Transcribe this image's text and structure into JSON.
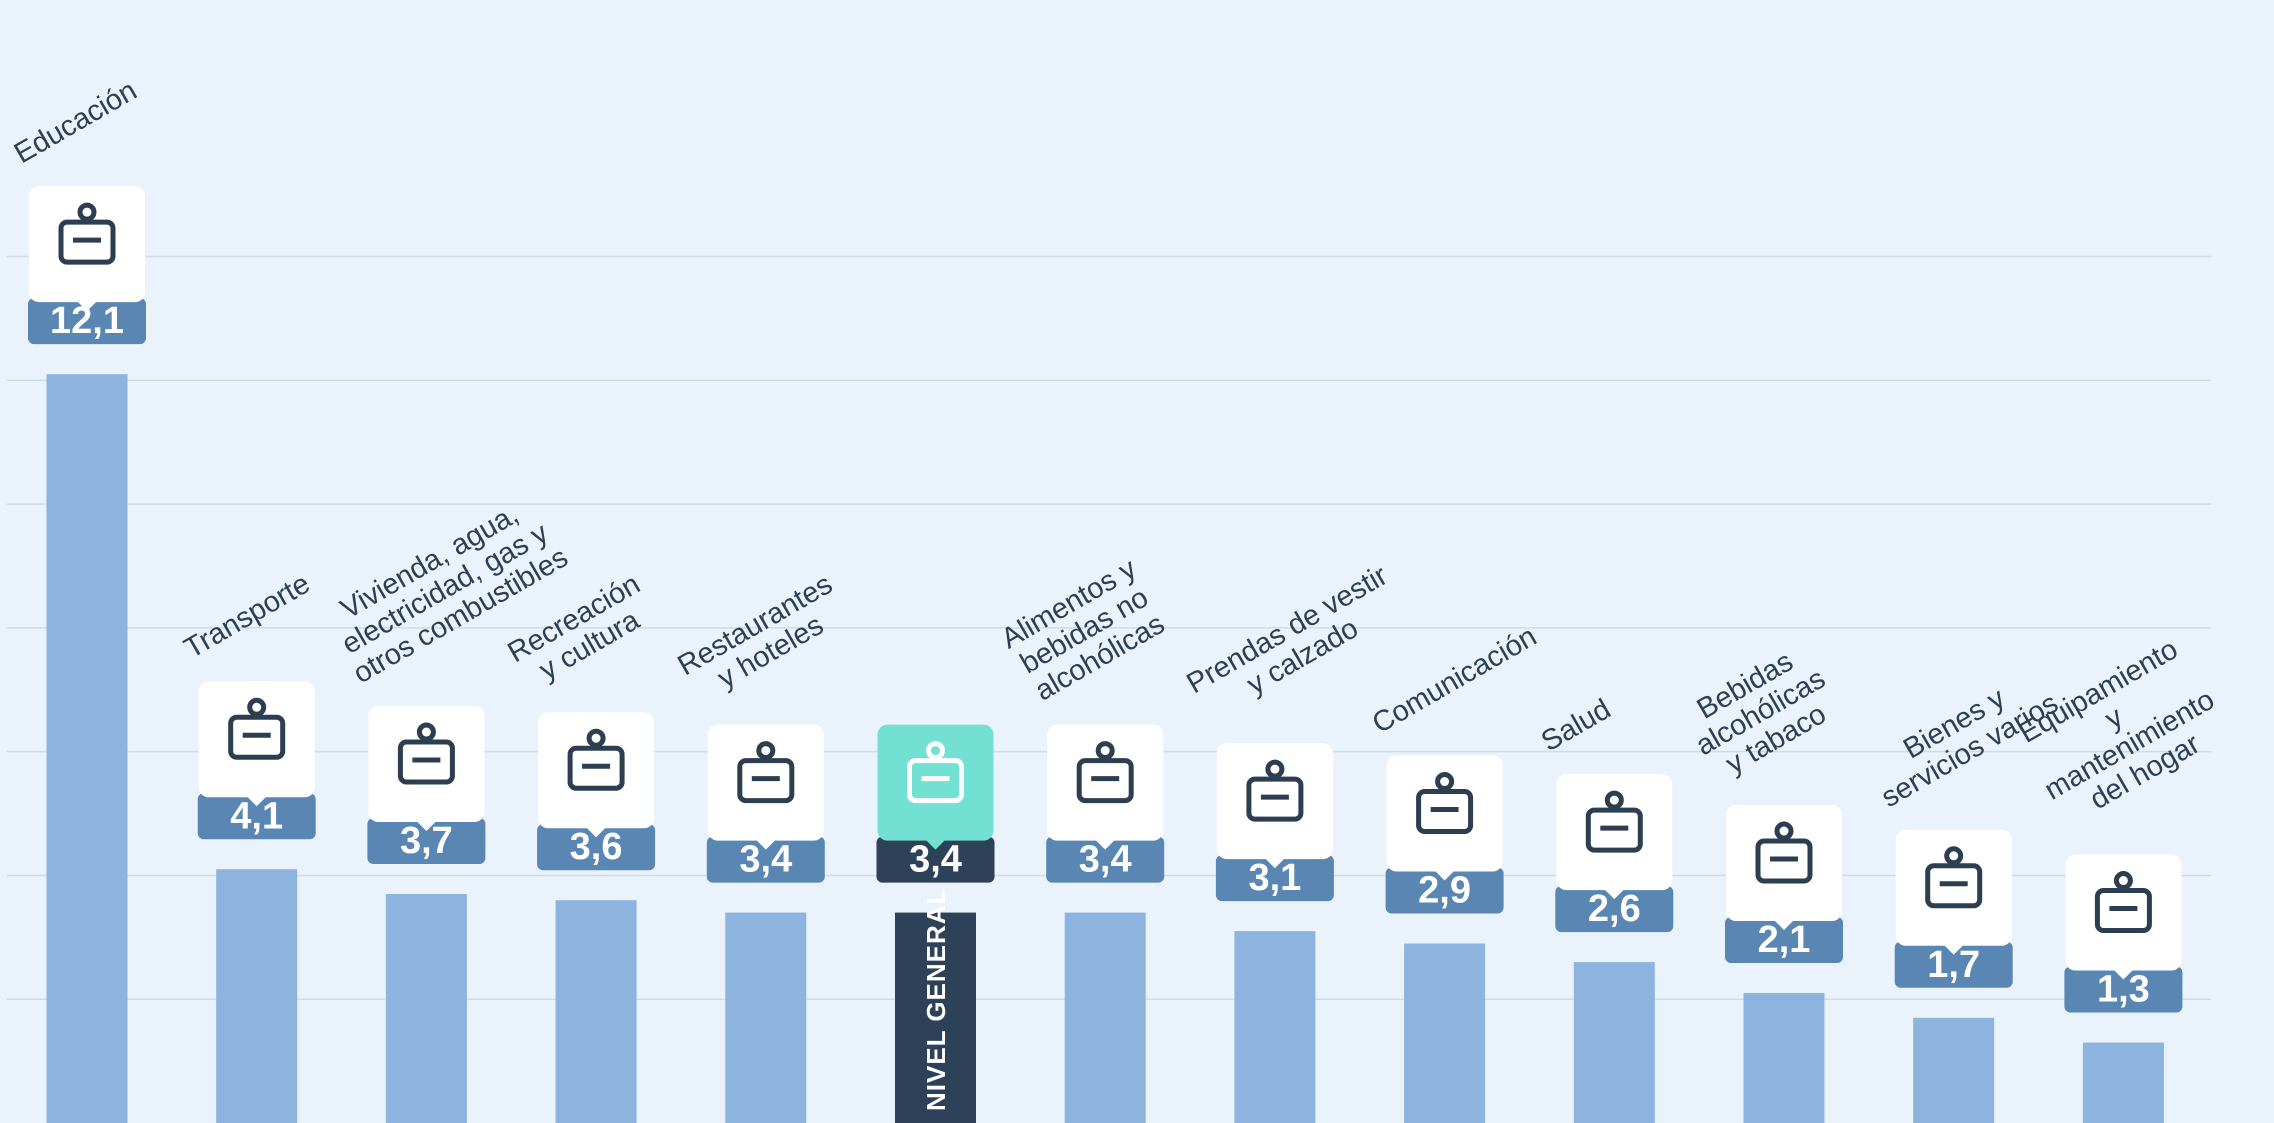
{
  "chart_data": {
    "type": "bar",
    "categories": [
      "Educación",
      "Transporte",
      "Vivienda, agua,\nelectricidad, gas y\notros combustibles",
      "Recreación\ny cultura",
      "Restaurantes\ny hoteles",
      "NIVEL GENERAL",
      "Alimentos y\nbebidas no\nalcohólicas",
      "Prendas de vestir\ny calzado",
      "Comunicación",
      "Salud",
      "Bebidas\nalcohólicas\ny tabaco",
      "Bienes y\nservicios varios",
      "Equipamiento\ny mantenimiento\ndel hogar"
    ],
    "values": [
      12.1,
      4.1,
      3.7,
      3.6,
      3.4,
      3.4,
      3.4,
      3.1,
      2.9,
      2.6,
      2.1,
      1.7,
      1.3
    ],
    "value_labels": [
      "12,1",
      "4,1",
      "3,7",
      "3,6",
      "3,4",
      "3,4",
      "3,4",
      "3,1",
      "2,9",
      "2,6",
      "2,1",
      "1,7",
      "1,3"
    ],
    "color": "#8cb4df",
    "colors": [
      "#8cb4df",
      "#8cb4df",
      "#8cb4df",
      "#8cb4df",
      "#8cb4df",
      "#2d4159",
      "#8cb4df",
      "#8cb4df",
      "#8cb4df",
      "#8cb4df",
      "#8cb4df",
      "#8cb4df",
      "#8cb4df"
    ],
    "label_color": "#5a86b4",
    "ylim": [
      0,
      18
    ],
    "yticks": [
      2,
      4,
      6,
      8,
      10,
      12,
      14
    ],
    "grid": true
  }
}
